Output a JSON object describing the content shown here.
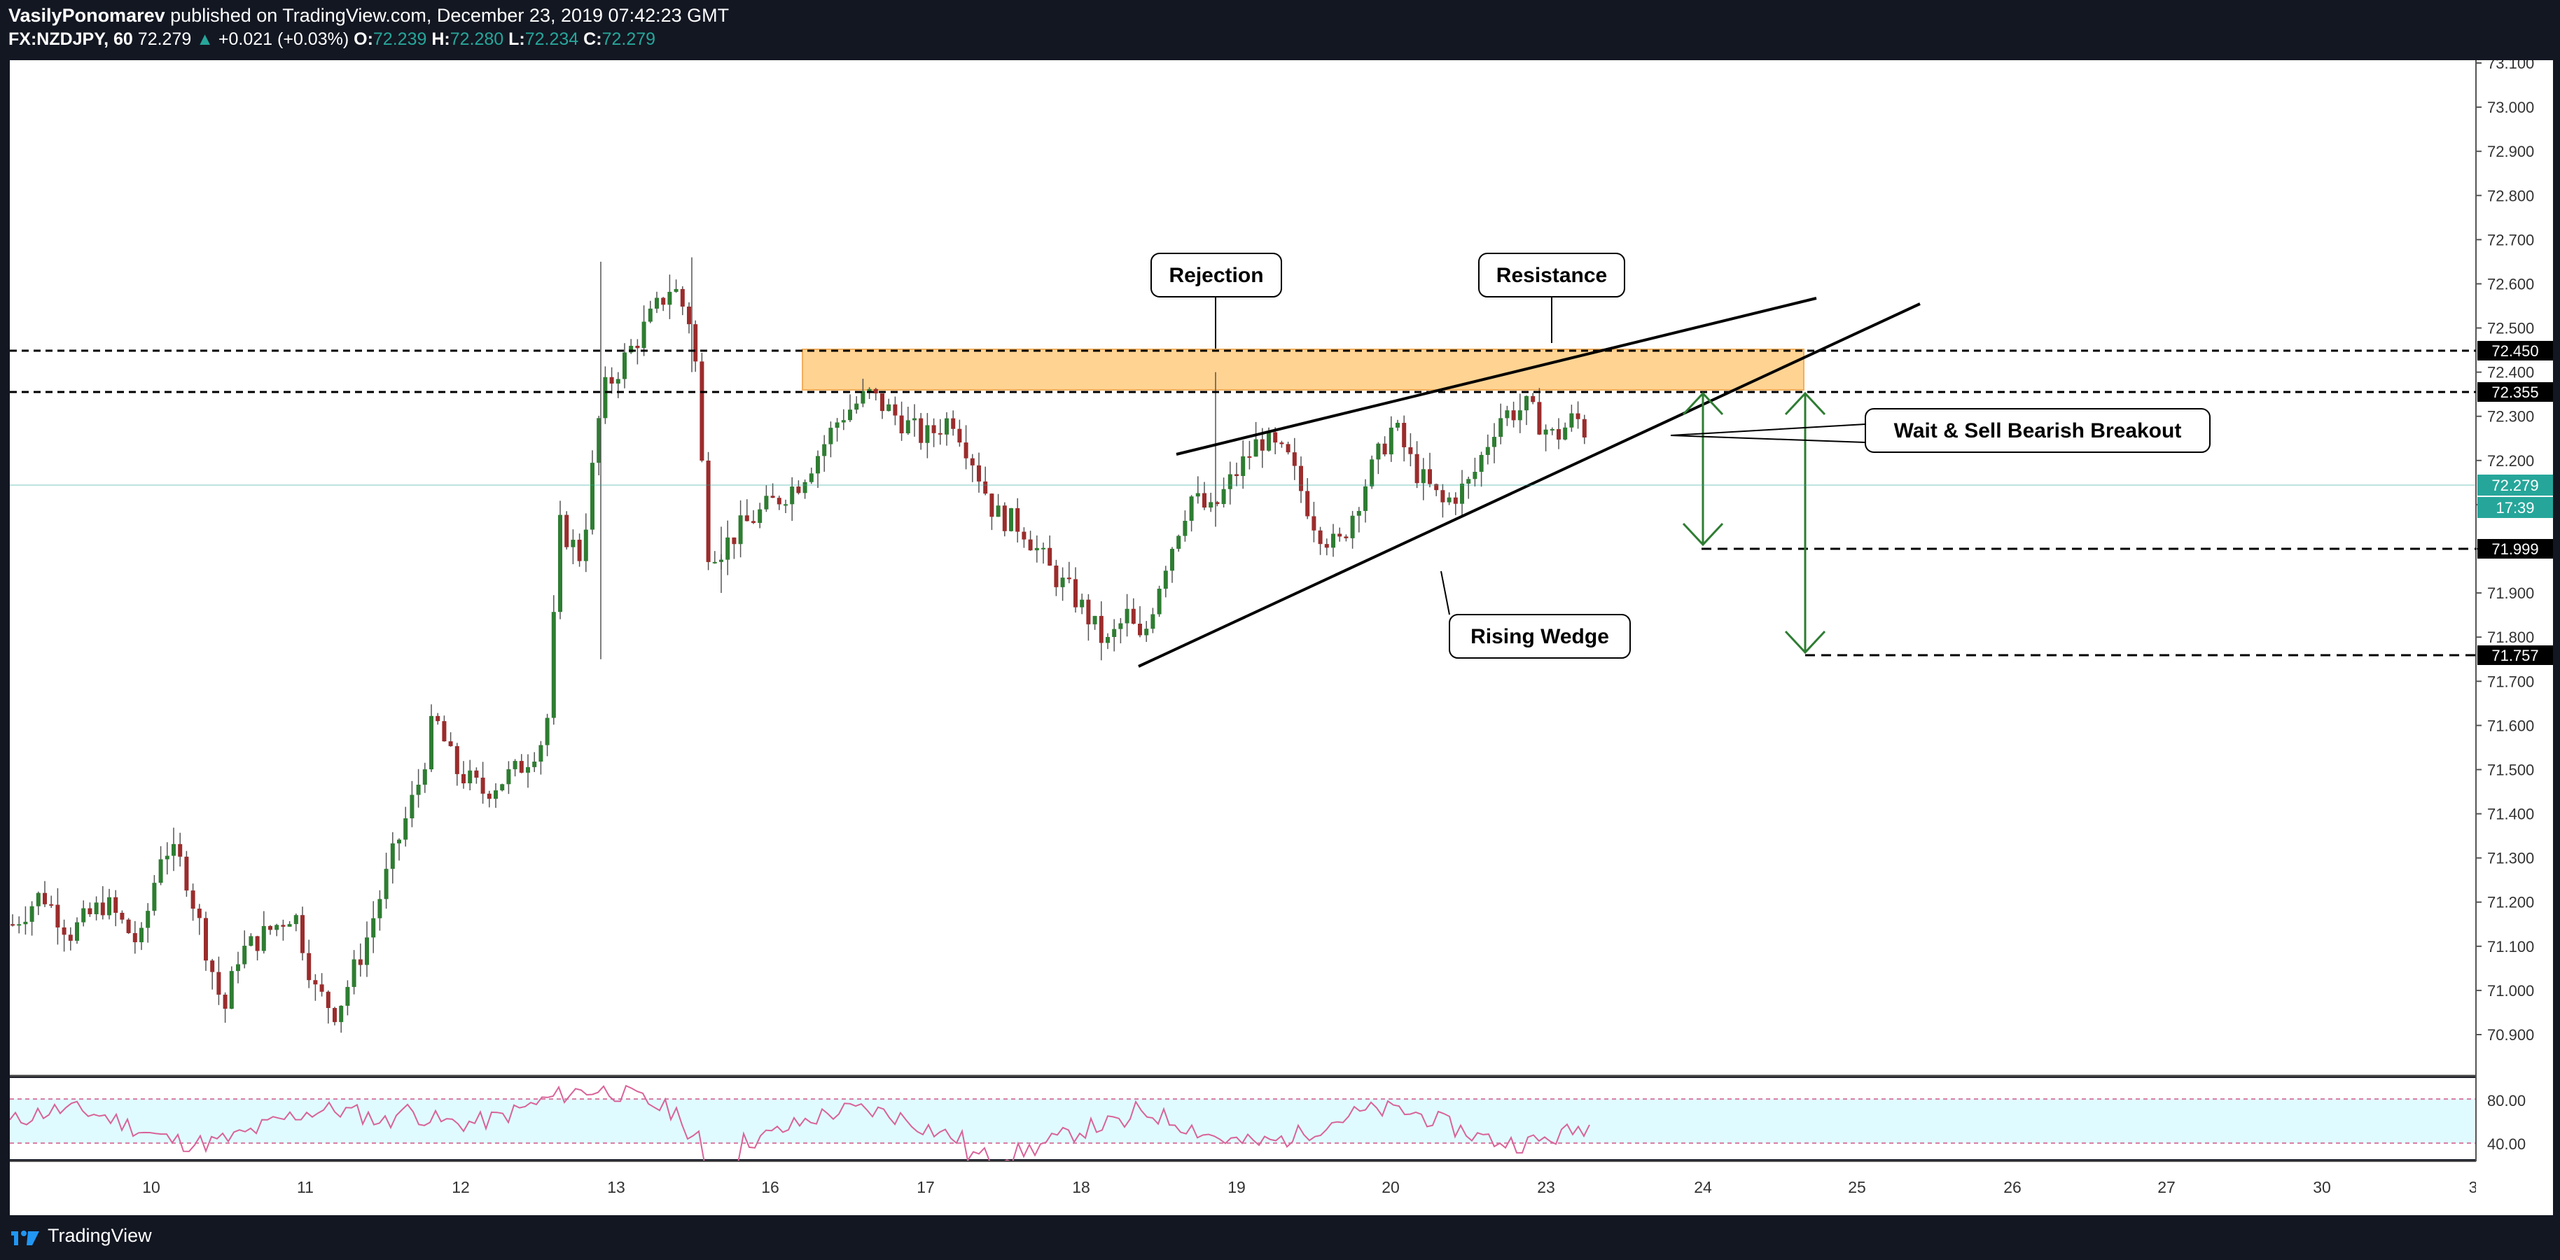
{
  "header": {
    "author": "VasilyPonomarev",
    "published": "published on TradingView.com, December 23, 2019 07:42:23 GMT",
    "symbol": "FX:NZDJPY, 60",
    "last": "72.279",
    "change": "+0.021 (+0.03%)",
    "o_label": "O:",
    "o_value": "72.239",
    "h_label": "H:",
    "h_value": "72.280",
    "l_label": "L:",
    "l_value": "72.234",
    "c_label": "C:",
    "c_value": "72.279"
  },
  "price_axis": {
    "ticks": [
      "73.100",
      "73.000",
      "72.900",
      "72.800",
      "72.700",
      "72.600",
      "72.500",
      "72.400",
      "72.300",
      "72.200",
      "72.100",
      "72.000",
      "71.900",
      "71.800",
      "71.700",
      "71.600",
      "71.500",
      "71.400",
      "71.300",
      "71.200",
      "71.100",
      "71.000",
      "70.900"
    ],
    "level_labels": [
      "72.450",
      "72.355",
      "71.999",
      "71.757"
    ],
    "current_price": "72.279",
    "countdown": "17:39"
  },
  "rsi_axis": {
    "ticks": [
      "80.00",
      "40.00"
    ]
  },
  "time_axis": {
    "ticks": [
      "10",
      "11",
      "12",
      "13",
      "16",
      "17",
      "18",
      "19",
      "20",
      "23",
      "24",
      "25",
      "26",
      "27",
      "30",
      "3"
    ]
  },
  "annotations": {
    "rejection": "Rejection",
    "resistance": "Resistance",
    "wait_sell": "Wait & Sell Bearish Breakout",
    "rising_wedge": "Rising Wedge"
  },
  "colors": {
    "background": "#ffffff",
    "frame": "#131722",
    "up": "#26a69a",
    "up_candle": "#2e7d32",
    "down_candle": "#9b2c2c",
    "zone": "#ffcc80",
    "target_arrow": "#2e7d32"
  },
  "footer": {
    "brand": "TradingView",
    "logo_icon": "tradingview-logo-icon"
  },
  "chart_data": {
    "type": "candlestick",
    "title": "",
    "horizontal_levels": [
      72.45,
      72.355,
      71.999,
      71.757
    ],
    "resistance_zone": [
      72.355,
      72.45
    ],
    "yrange": [
      70.8,
      73.1
    ],
    "rsi_levels": [
      80,
      40
    ]
  }
}
